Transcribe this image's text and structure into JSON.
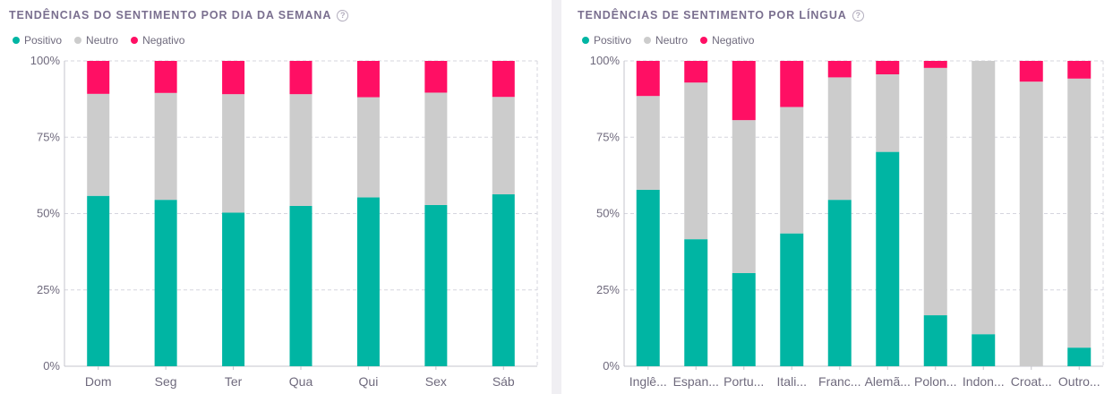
{
  "colors": {
    "positive": "#00b5a3",
    "neutral": "#cccccc",
    "negative": "#ff0f64",
    "grid": "#d6d6de",
    "axis": "#c4c4cc"
  },
  "legend": {
    "positive": "Positivo",
    "neutral": "Neutro",
    "negative": "Negativo"
  },
  "help_icon": "?",
  "panels": [
    {
      "title": "Tendências do sentimento por dia da semana"
    },
    {
      "title": "Tendências de sentimento por língua"
    }
  ],
  "chart_data": [
    {
      "type": "bar",
      "stacked": true,
      "percent": true,
      "title": "Tendências do sentimento por dia da semana",
      "y_ticks": [
        "0%",
        "25%",
        "50%",
        "75%",
        "100%"
      ],
      "ylim": [
        0,
        100
      ],
      "grid": true,
      "legend_position": "top-left",
      "categories": [
        "Dom",
        "Seg",
        "Ter",
        "Qua",
        "Qui",
        "Sex",
        "Sáb"
      ],
      "series": [
        {
          "name": "Positivo",
          "values": [
            55.8,
            54.5,
            50.3,
            52.5,
            55.3,
            52.8,
            56.3
          ]
        },
        {
          "name": "Neutro",
          "values": [
            33.4,
            35.0,
            38.8,
            36.6,
            32.8,
            36.8,
            31.9
          ]
        },
        {
          "name": "Negativo",
          "values": [
            10.8,
            10.5,
            10.9,
            10.9,
            11.9,
            10.4,
            11.8
          ]
        }
      ]
    },
    {
      "type": "bar",
      "stacked": true,
      "percent": true,
      "title": "Tendências de sentimento por língua",
      "y_ticks": [
        "0%",
        "25%",
        "50%",
        "75%",
        "100%"
      ],
      "ylim": [
        0,
        100
      ],
      "grid": true,
      "legend_position": "top-left",
      "categories": [
        "Inglê...",
        "Espan...",
        "Portu...",
        "Itali...",
        "Franc...",
        "Alemã...",
        "Polon...",
        "Indon...",
        "Croat...",
        "Outro..."
      ],
      "series": [
        {
          "name": "Positivo",
          "values": [
            57.8,
            41.6,
            30.5,
            43.5,
            54.5,
            70.2,
            16.7,
            10.5,
            0,
            6.1
          ]
        },
        {
          "name": "Neutro",
          "values": [
            30.7,
            51.3,
            50.1,
            41.4,
            40.1,
            25.4,
            81.0,
            89.5,
            93.2,
            88.1
          ]
        },
        {
          "name": "Negativo",
          "values": [
            11.5,
            7.1,
            19.4,
            15.1,
            5.4,
            4.4,
            2.3,
            0,
            6.8,
            5.8
          ]
        }
      ]
    }
  ]
}
